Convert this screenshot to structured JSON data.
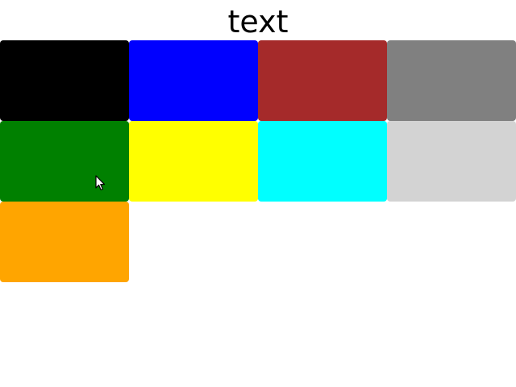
{
  "header": {
    "title": "text"
  },
  "swatches": [
    {
      "id": "black",
      "color": "#000000"
    },
    {
      "id": "blue",
      "color": "#0000ff"
    },
    {
      "id": "brown",
      "color": "#a52a2a"
    },
    {
      "id": "gray",
      "color": "#808080"
    },
    {
      "id": "green",
      "color": "#008000"
    },
    {
      "id": "yellow",
      "color": "#ffff00"
    },
    {
      "id": "cyan",
      "color": "#00ffff"
    },
    {
      "id": "lightgray",
      "color": "#d3d3d3"
    },
    {
      "id": "orange",
      "color": "#ffa500"
    }
  ],
  "cursor": {
    "icon": "mouse-pointer-icon"
  }
}
